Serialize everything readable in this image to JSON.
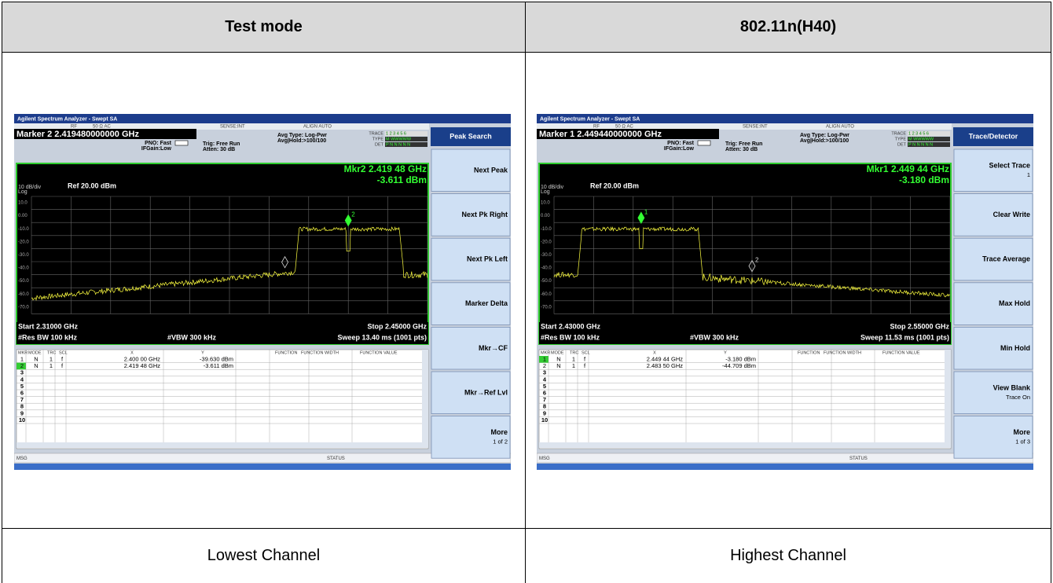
{
  "table": {
    "header": [
      "Test mode",
      "802.11n(H40)"
    ],
    "footer": [
      "Lowest Channel",
      "Highest Channel"
    ]
  },
  "screens": [
    {
      "app_title": "Agilent Spectrum Analyzer - Swept SA",
      "status_items": [
        "RF",
        "50 Ω  AC",
        "SENSE:INT",
        "ALIGN AUTO"
      ],
      "marker_readout": "Marker 2 2.419480000000 GHz",
      "settings": [
        "PNO: Fast",
        "IFGain:Low",
        "Trig: Free Run",
        "Atten: 30 dB",
        "Avg Type: Log-Pwr",
        "Avg|Hold:>100/100"
      ],
      "trace_rows": [
        [
          "TRACE",
          "1 2 3 4 5 6"
        ],
        [
          "TYPE",
          "M WWWWW"
        ],
        [
          "DET",
          "P N N N N N"
        ]
      ],
      "mkr_freq": "Mkr2 2.419 48 GHz",
      "mkr_level": "-3.611 dBm",
      "scale": "10 dB/div",
      "log": "Log",
      "ref": "Ref 20.00 dBm",
      "y_labels": [
        "10.0",
        "0.00",
        "-10.0",
        "-20.0",
        "-30.0",
        "-40.0",
        "-50.0",
        "-60.0",
        "-70.0"
      ],
      "start": "Start 2.31000 GHz",
      "stop": "Stop 2.45000 GHz",
      "rbw": "#Res BW 100 kHz",
      "vbw": "#VBW 300 kHz",
      "sweep": "Sweep  13.40 ms (1001 pts)",
      "columns": [
        "MKR",
        "MODE",
        "TRC",
        "SCL",
        "X",
        "Y",
        "FUNCTION",
        "FUNCTION WIDTH",
        "FUNCTION VALUE"
      ],
      "markers": [
        [
          "1",
          "N",
          "1",
          "f",
          "2.400 00 GHz",
          "-39.630 dBm"
        ],
        [
          "2",
          "N",
          "1",
          "f",
          "2.419 48 GHz",
          "-3.611 dBm"
        ]
      ],
      "row_numbers": [
        "3",
        "4",
        "5",
        "6",
        "7",
        "8",
        "9",
        "10"
      ],
      "active_row": 1,
      "marker_tags": [
        "2"
      ],
      "softkey_title": "Peak Search",
      "softkeys": [
        {
          "label": "Next Peak"
        },
        {
          "label": "Next Pk Right"
        },
        {
          "label": "Next Pk Left"
        },
        {
          "label": "Marker Delta"
        },
        {
          "label": "Mkr→CF"
        },
        {
          "label": "Mkr→Ref Lvl"
        },
        {
          "label": "More",
          "sub": "1 of 2"
        }
      ],
      "msg": "MSG",
      "status": "STATUS"
    },
    {
      "app_title": "Agilent Spectrum Analyzer - Swept SA",
      "status_items": [
        "RF",
        "50 Ω  AC",
        "SENSE:INT",
        "ALIGN AUTO"
      ],
      "marker_readout": "Marker 1 2.449440000000 GHz",
      "settings": [
        "PNO: Fast",
        "IFGain:Low",
        "Trig: Free Run",
        "Atten: 30 dB",
        "Avg Type: Log-Pwr",
        "Avg|Hold:>100/100"
      ],
      "trace_rows": [
        [
          "TRACE",
          "1 2 3 4 5 6"
        ],
        [
          "TYPE",
          "M WWWWW"
        ],
        [
          "DET",
          "P N N N N N"
        ]
      ],
      "mkr_freq": "Mkr1 2.449 44 GHz",
      "mkr_level": "-3.180 dBm",
      "scale": "10 dB/div",
      "log": "Log",
      "ref": "Ref 20.00 dBm",
      "y_labels": [
        "10.0",
        "0.00",
        "-10.0",
        "-20.0",
        "-30.0",
        "-40.0",
        "-50.0",
        "-60.0",
        "-70.0"
      ],
      "start": "Start 2.43000 GHz",
      "stop": "Stop 2.55000 GHz",
      "rbw": "#Res BW 100 kHz",
      "vbw": "#VBW 300 kHz",
      "sweep": "Sweep  11.53 ms (1001 pts)",
      "columns": [
        "MKR",
        "MODE",
        "TRC",
        "SCL",
        "X",
        "Y",
        "FUNCTION",
        "FUNCTION WIDTH",
        "FUNCTION VALUE"
      ],
      "markers": [
        [
          "1",
          "N",
          "1",
          "f",
          "2.449 44 GHz",
          "-3.180 dBm"
        ],
        [
          "2",
          "N",
          "1",
          "f",
          "2.483 50 GHz",
          "-44.709 dBm"
        ]
      ],
      "row_numbers": [
        "3",
        "4",
        "5",
        "6",
        "7",
        "8",
        "9",
        "10"
      ],
      "active_row": 0,
      "marker_tags": [
        "1",
        "2"
      ],
      "softkey_title": "Trace/Detector",
      "softkeys": [
        {
          "label": "Select Trace",
          "sub": "1"
        },
        {
          "label": "Clear Write"
        },
        {
          "label": "Trace Average"
        },
        {
          "label": "Max Hold"
        },
        {
          "label": "Min Hold"
        },
        {
          "label": "View Blank",
          "sub": "Trace On"
        },
        {
          "label": "More",
          "sub": "1 of 3"
        }
      ],
      "msg": "MSG",
      "status": "STATUS"
    }
  ]
}
